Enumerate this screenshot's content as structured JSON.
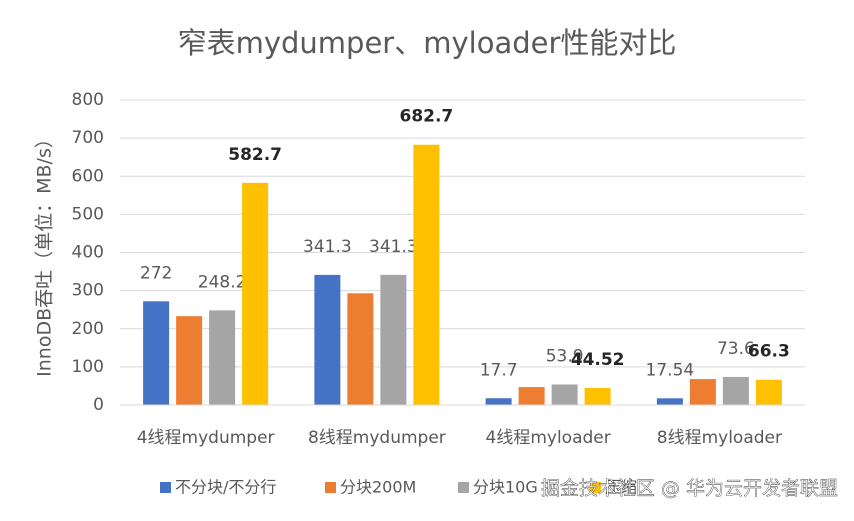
{
  "chart_data": {
    "type": "bar",
    "title": "窄表mydumper、myloader性能对比",
    "y_label": "InnoDB吞吐（单位：MB/s）",
    "categories": [
      "4线程mydumper",
      "8线程mydumper",
      "4线程myloader",
      "8线程myloader"
    ],
    "series": [
      {
        "name": "不分块/不分行",
        "color": "#4472c4",
        "values": [
          272,
          341.3,
          17.7,
          17.54
        ],
        "show_labels": true
      },
      {
        "name": "分块200M",
        "color": "#ed7d31",
        "values": [
          233,
          293,
          47,
          68
        ],
        "show_labels": false
      },
      {
        "name": "分块10G",
        "color": "#a5a5a5",
        "values": [
          248.2,
          341.3,
          53.9,
          73.6
        ],
        "show_labels": true
      },
      {
        "name": "压缩",
        "color": "#ffc000",
        "values": [
          582.7,
          682.7,
          44.52,
          66.3
        ],
        "show_labels": true
      }
    ],
    "ylim": [
      0,
      800
    ],
    "yticks": [
      0,
      100,
      200,
      300,
      400,
      500,
      600,
      700,
      800
    ],
    "grid": true,
    "watermark": "掘金技术社区 @ 华为云开发者联盟"
  }
}
